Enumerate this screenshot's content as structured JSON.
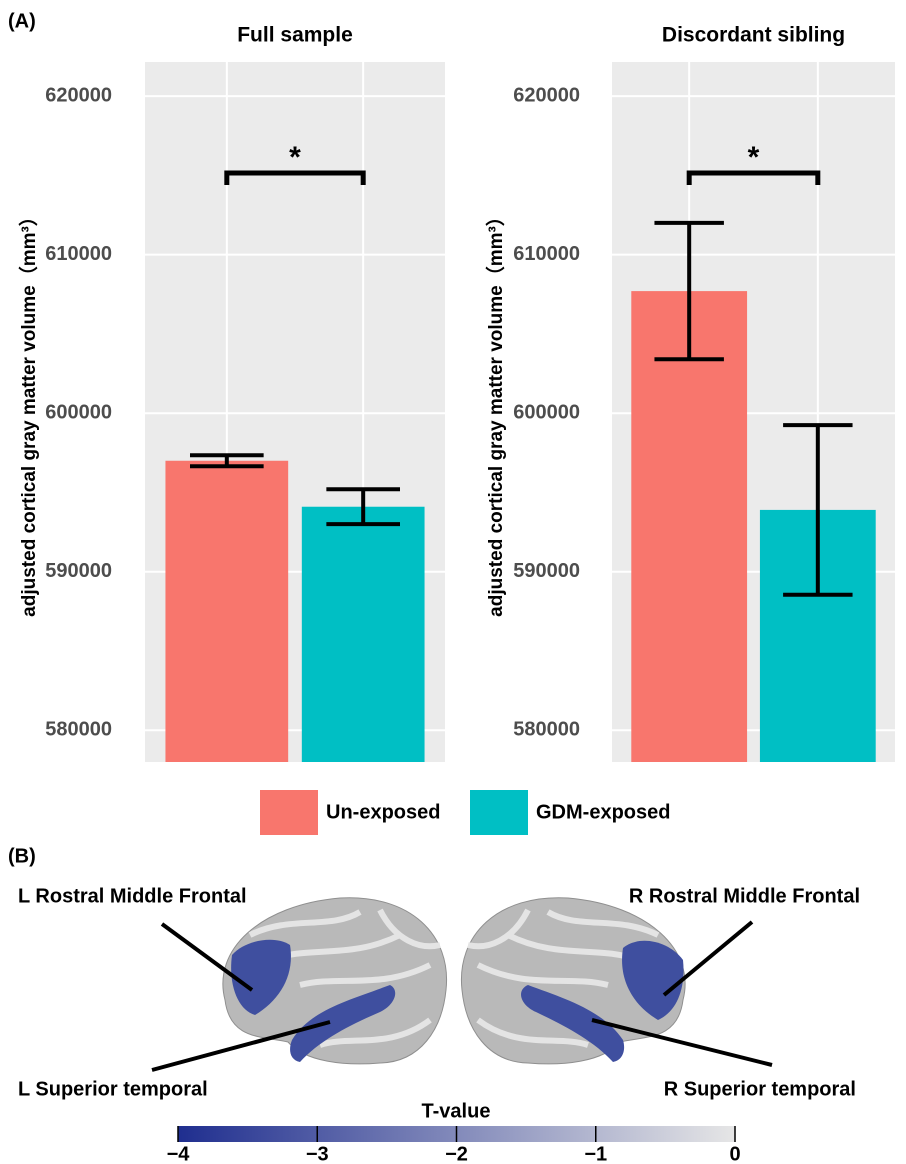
{
  "panel_labels": {
    "a": "(A)",
    "b": "(B)"
  },
  "chart_data": [
    {
      "type": "bar",
      "title": "Full sample",
      "y_label": "adjusted cortical gray matter volume（mm³）",
      "categories": [
        null,
        null
      ],
      "values": [
        597000,
        594100
      ],
      "errors": [
        350,
        1100
      ],
      "annotation": "*",
      "ylim": [
        578000,
        622150
      ],
      "yticks": [
        580000,
        590000,
        600000,
        610000,
        620000
      ],
      "grid": true
    },
    {
      "type": "bar",
      "title": "Discordant sibling",
      "y_label": "adjusted cortical gray matter volume（mm³）",
      "categories": [
        null,
        null
      ],
      "values": [
        607700,
        593900
      ],
      "errors": [
        4300,
        5350
      ],
      "annotation": "*",
      "ylim": [
        578000,
        622150
      ],
      "yticks": [
        580000,
        590000,
        600000,
        610000,
        620000
      ],
      "grid": true
    }
  ],
  "legend": {
    "items": [
      {
        "label": "Un-exposed",
        "color": "#F8766D"
      },
      {
        "label": "GDM-exposed",
        "color": "#00BFC4"
      }
    ]
  },
  "brain_panel": {
    "labels": {
      "l_frontal": "L Rostral Middle Frontal",
      "r_frontal": "R Rostral Middle Frontal",
      "l_temporal": "L Superior temporal",
      "r_temporal": "R Superior temporal"
    },
    "colorbar": {
      "title": "T-value",
      "lim": [
        -4,
        0
      ],
      "colors": [
        "#1f2e8f",
        "#e6e6e6"
      ],
      "ticks": [
        {
          "value": -4,
          "label": "−4"
        },
        {
          "value": -3,
          "label": "−3"
        },
        {
          "value": -2,
          "label": "−2"
        },
        {
          "value": -1,
          "label": "−1"
        },
        0
      ]
    }
  }
}
